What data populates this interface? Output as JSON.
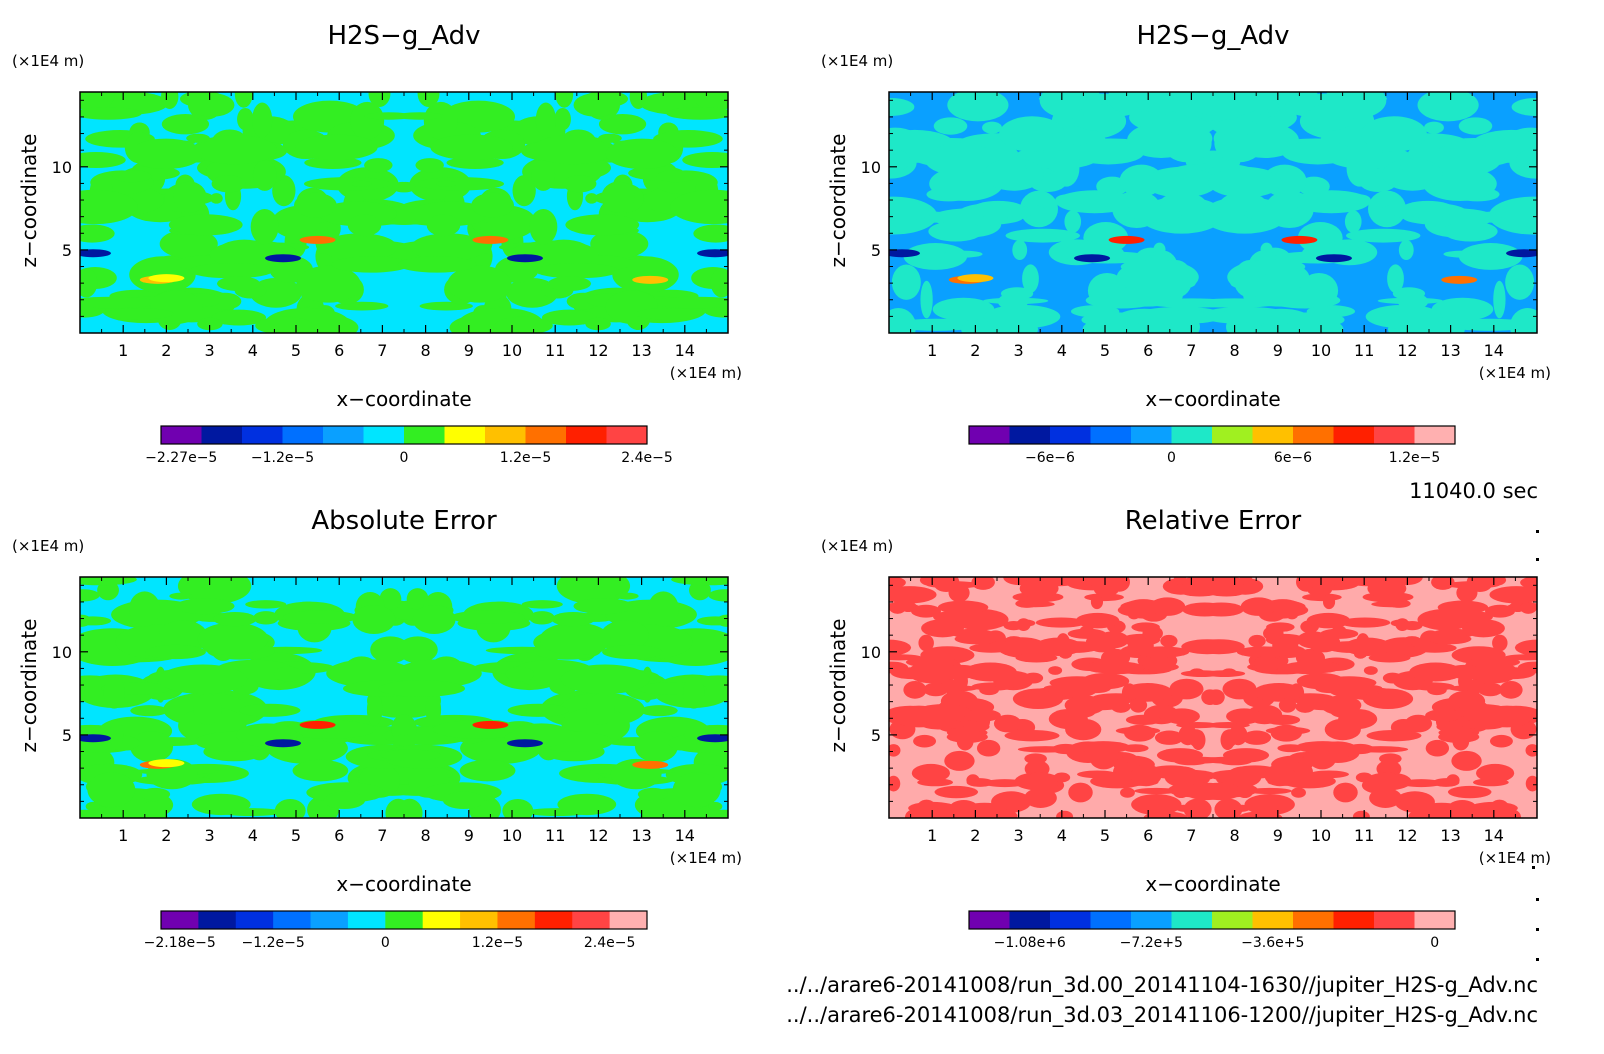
{
  "timestamp": "11040.0 sec",
  "files": [
    "../../arare6-20141008/run_3d.00_20141104-1630//jupiter_H2S-g_Adv.nc",
    "../../arare6-20141008/run_3d.03_20141106-1200//jupiter_H2S-g_Adv.nc"
  ],
  "chart_data": [
    {
      "type": "heatmap",
      "title": "H2S−g_Adv",
      "xlabel": "x−coordinate",
      "ylabel": "z−coordinate",
      "x_unit": "(×1E4 m)",
      "y_unit": "(×1E4 m)",
      "xlim": [
        0,
        15
      ],
      "ylim": [
        0,
        14.5
      ],
      "x_ticks": [
        "1",
        "2",
        "3",
        "4",
        "5",
        "6",
        "7",
        "8",
        "9",
        "10",
        "11",
        "12",
        "13",
        "14"
      ],
      "y_ticks": [
        "5",
        "10"
      ],
      "dominant_colors": [
        "#00e5ff",
        "#33ee22"
      ],
      "colorbar": {
        "colors": [
          "#7000b0",
          "#0018a0",
          "#0030e0",
          "#0070ff",
          "#0aa0ff",
          "#00e5ff",
          "#33ee22",
          "#ffff00",
          "#ffc000",
          "#ff7000",
          "#ff2000",
          "#ff4444"
        ],
        "labels": [
          "−2.27e−5",
          "−1.2e−5",
          "0",
          "1.2e−5",
          "2.4e−5"
        ]
      }
    },
    {
      "type": "heatmap",
      "title": "H2S−g_Adv",
      "xlabel": "x−coordinate",
      "ylabel": "z−coordinate",
      "x_unit": "(×1E4 m)",
      "y_unit": "(×1E4 m)",
      "xlim": [
        0,
        15
      ],
      "ylim": [
        0,
        14.5
      ],
      "x_ticks": [
        "1",
        "2",
        "3",
        "4",
        "5",
        "6",
        "7",
        "8",
        "9",
        "10",
        "11",
        "12",
        "13",
        "14"
      ],
      "y_ticks": [
        "5",
        "10"
      ],
      "dominant_colors": [
        "#0aa0ff",
        "#1ee8c8"
      ],
      "colorbar": {
        "colors": [
          "#7000b0",
          "#0018a0",
          "#0030e0",
          "#0070ff",
          "#0aa0ff",
          "#1ee8c8",
          "#a0f020",
          "#ffc000",
          "#ff7000",
          "#ff2000",
          "#ff4444",
          "#ffb0b0"
        ],
        "labels": [
          "−6e−6",
          "0",
          "6e−6",
          "1.2e−5"
        ]
      }
    },
    {
      "type": "heatmap",
      "title": "Absolute Error",
      "xlabel": "x−coordinate",
      "ylabel": "z−coordinate",
      "x_unit": "(×1E4 m)",
      "y_unit": "(×1E4 m)",
      "xlim": [
        0,
        15
      ],
      "ylim": [
        0,
        14.5
      ],
      "x_ticks": [
        "1",
        "2",
        "3",
        "4",
        "5",
        "6",
        "7",
        "8",
        "9",
        "10",
        "11",
        "12",
        "13",
        "14"
      ],
      "y_ticks": [
        "5",
        "10"
      ],
      "dominant_colors": [
        "#00e5ff",
        "#33ee22"
      ],
      "colorbar": {
        "colors": [
          "#7000b0",
          "#0018a0",
          "#0030e0",
          "#0070ff",
          "#0aa0ff",
          "#00e5ff",
          "#33ee22",
          "#ffff00",
          "#ffc000",
          "#ff7000",
          "#ff2000",
          "#ff4444",
          "#ffb0b0"
        ],
        "labels": [
          "−2.18e−5",
          "−1.2e−5",
          "0",
          "1.2e−5",
          "2.4e−5"
        ]
      }
    },
    {
      "type": "heatmap",
      "title": "Relative Error",
      "xlabel": "x−coordinate",
      "ylabel": "z−coordinate",
      "x_unit": "(×1E4 m)",
      "y_unit": "(×1E4 m)",
      "xlim": [
        0,
        15
      ],
      "ylim": [
        0,
        14.5
      ],
      "x_ticks": [
        "1",
        "2",
        "3",
        "4",
        "5",
        "6",
        "7",
        "8",
        "9",
        "10",
        "11",
        "12",
        "13",
        "14"
      ],
      "y_ticks": [
        "5",
        "10"
      ],
      "dominant_colors": [
        "#ffaaaa",
        "#ff4444"
      ],
      "colorbar": {
        "colors": [
          "#7000b0",
          "#0018a0",
          "#0030e0",
          "#0070ff",
          "#0aa0ff",
          "#1ee8c8",
          "#a0f020",
          "#ffc000",
          "#ff7000",
          "#ff2000",
          "#ff4444",
          "#ffb0b0"
        ],
        "labels": [
          "−1.08e+6",
          "−7.2e+5",
          "−3.6e+5",
          "0"
        ]
      }
    }
  ]
}
